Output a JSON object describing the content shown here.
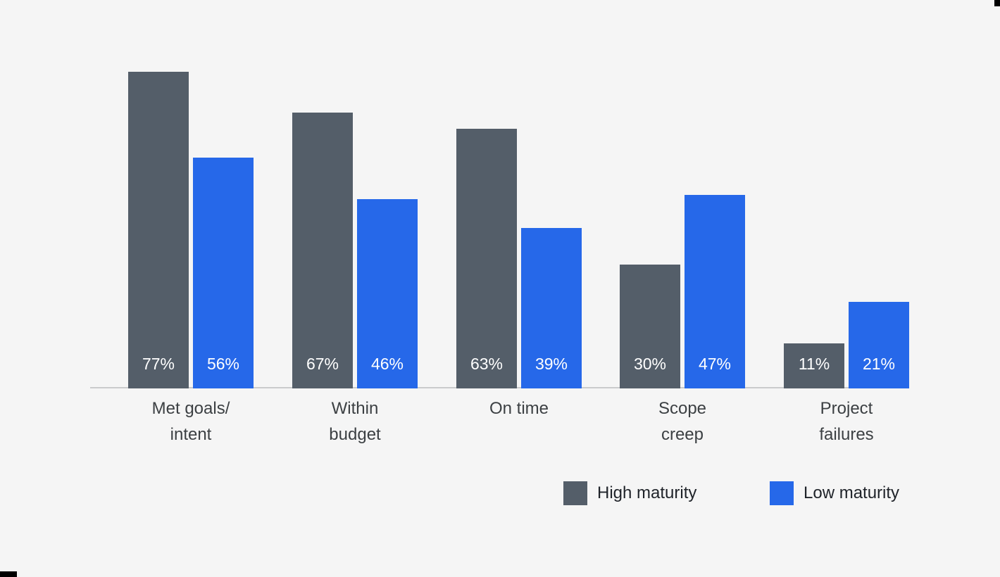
{
  "chart_data": {
    "type": "bar",
    "categories": [
      "Met goals/ intent",
      "Within budget",
      "On time",
      "Scope creep",
      "Project failures"
    ],
    "category_lines": [
      [
        "Met goals/",
        "intent"
      ],
      [
        "Within",
        "budget"
      ],
      [
        "On time"
      ],
      [
        "Scope",
        "creep"
      ],
      [
        "Project",
        "failures"
      ]
    ],
    "series": [
      {
        "name": "High maturity",
        "color": "#545E69",
        "values": [
          77,
          67,
          63,
          30,
          11
        ],
        "labels": [
          "77%",
          "67%",
          "63%",
          "30%",
          "11%"
        ]
      },
      {
        "name": "Low maturity",
        "color": "#2668E9",
        "values": [
          56,
          46,
          39,
          47,
          21
        ],
        "labels": [
          "56%",
          "46%",
          "39%",
          "47%",
          "21%"
        ]
      }
    ],
    "value_suffix": "%",
    "ylim": [
      0,
      100
    ],
    "grid": false,
    "y_axis_visible": false,
    "legend_position": "bottom-right"
  },
  "colors": {
    "background": "#F5F5F5",
    "axis_line": "#CACBCC",
    "category_text": "#3C4043",
    "legend_text": "#1F2329",
    "bar_value_text": "#FFFFFF",
    "high_maturity": "#545E69",
    "low_maturity": "#2668E9"
  }
}
